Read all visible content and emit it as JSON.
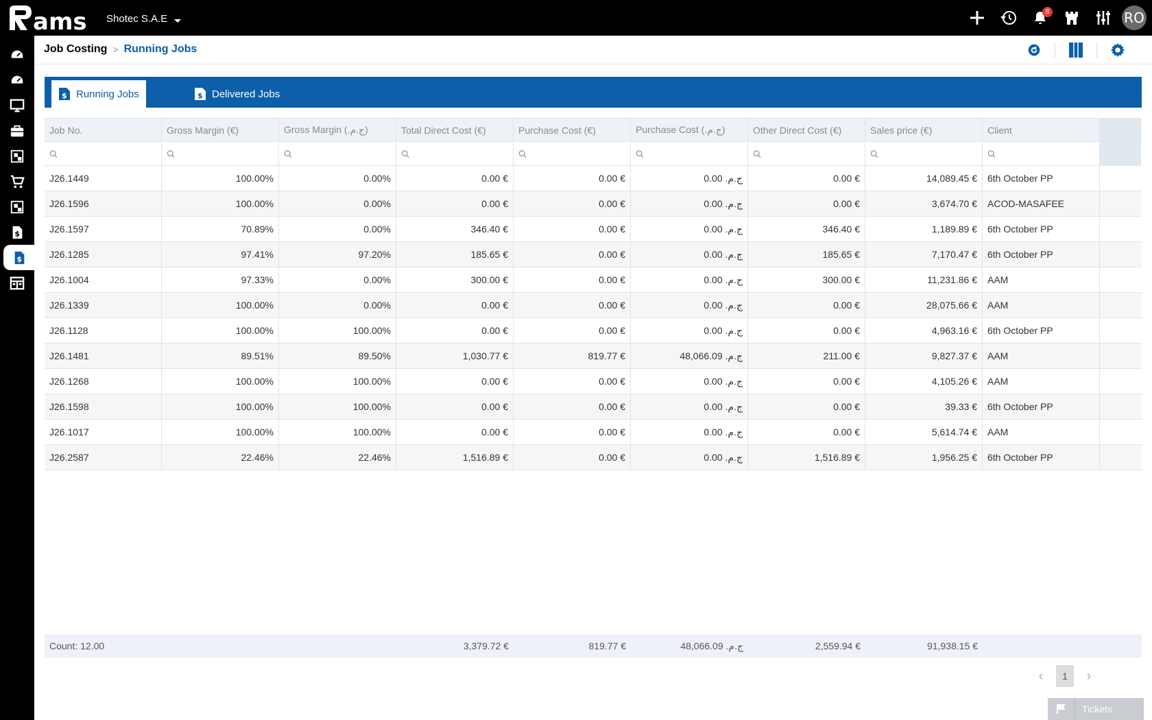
{
  "app": {
    "logo_text": "ams",
    "company": "Shotec S.A.E"
  },
  "topbar": {
    "notifications_count": "8",
    "avatar_initials": "RO"
  },
  "breadcrumb": {
    "root": "Job Costing",
    "separator": ">",
    "current": "Running Jobs"
  },
  "tabs": [
    {
      "label": "Running Jobs",
      "active": true
    },
    {
      "label": "Delivered Jobs",
      "active": false
    }
  ],
  "table": {
    "columns": [
      "Job No.",
      "Gross Margin (€)",
      "Gross Margin (.ج.م)",
      "Total Direct Cost (€)",
      "Purchase Cost (€)",
      "Purchase Cost (.ج.م)",
      "Other Direct Cost (€)",
      "Sales price (€)",
      "Client"
    ],
    "rows": [
      [
        "J26.1449",
        "100.00%",
        "0.00%",
        "0.00 €",
        "0.00 €",
        "ج.م. 0.00",
        "0.00 €",
        "14,089.45 €",
        "6th October PP"
      ],
      [
        "J26.1596",
        "100.00%",
        "0.00%",
        "0.00 €",
        "0.00 €",
        "ج.م. 0.00",
        "0.00 €",
        "3,674.70 €",
        "ACOD-MASAFEE"
      ],
      [
        "J26.1597",
        "70.89%",
        "0.00%",
        "346.40 €",
        "0.00 €",
        "ج.م. 0.00",
        "346.40 €",
        "1,189.89 €",
        "6th October PP"
      ],
      [
        "J26.1285",
        "97.41%",
        "97.20%",
        "185.65 €",
        "0.00 €",
        "ج.م. 0.00",
        "185.65 €",
        "7,170.47 €",
        "6th October PP"
      ],
      [
        "J26.1004",
        "97.33%",
        "0.00%",
        "300.00 €",
        "0.00 €",
        "ج.م. 0.00",
        "300.00 €",
        "11,231.86 €",
        "AAM"
      ],
      [
        "J26.1339",
        "100.00%",
        "0.00%",
        "0.00 €",
        "0.00 €",
        "ج.م. 0.00",
        "0.00 €",
        "28,075.66 €",
        "AAM"
      ],
      [
        "J26.1128",
        "100.00%",
        "100.00%",
        "0.00 €",
        "0.00 €",
        "ج.م. 0.00",
        "0.00 €",
        "4,963.16 €",
        "6th October PP"
      ],
      [
        "J26.1481",
        "89.51%",
        "89.50%",
        "1,030.77 €",
        "819.77 €",
        "ج.م. 48,066.09",
        "211.00 €",
        "9,827.37 €",
        "AAM"
      ],
      [
        "J26.1268",
        "100.00%",
        "100.00%",
        "0.00 €",
        "0.00 €",
        "ج.م. 0.00",
        "0.00 €",
        "4,105.26 €",
        "AAM"
      ],
      [
        "J26.1598",
        "100.00%",
        "100.00%",
        "0.00 €",
        "0.00 €",
        "ج.م. 0.00",
        "0.00 €",
        "39.33 €",
        "6th October PP"
      ],
      [
        "J26.1017",
        "100.00%",
        "100.00%",
        "0.00 €",
        "0.00 €",
        "ج.م. 0.00",
        "0.00 €",
        "5,614.74 €",
        "AAM"
      ],
      [
        "J26.2587",
        "22.46%",
        "22.46%",
        "1,516.89 €",
        "0.00 €",
        "ج.م. 0.00",
        "1,516.89 €",
        "1,956.25 €",
        "6th October PP"
      ]
    ]
  },
  "summary": {
    "count": "Count: 12.00",
    "total_direct_cost": "3,379.72 €",
    "purchase_cost_eur": "819.77 €",
    "purchase_cost_egp": "ج.م. 48,066.09",
    "other_direct_cost": "2,559.94 €",
    "sales_price": "91,938.15 €"
  },
  "pagination": {
    "current_page": "1"
  },
  "tickets": {
    "label": "Tickets"
  },
  "colors": {
    "primary": "#0c5fa8",
    "topbar": "#000000",
    "header_bg": "#eef2f8",
    "badge": "#e53935"
  }
}
